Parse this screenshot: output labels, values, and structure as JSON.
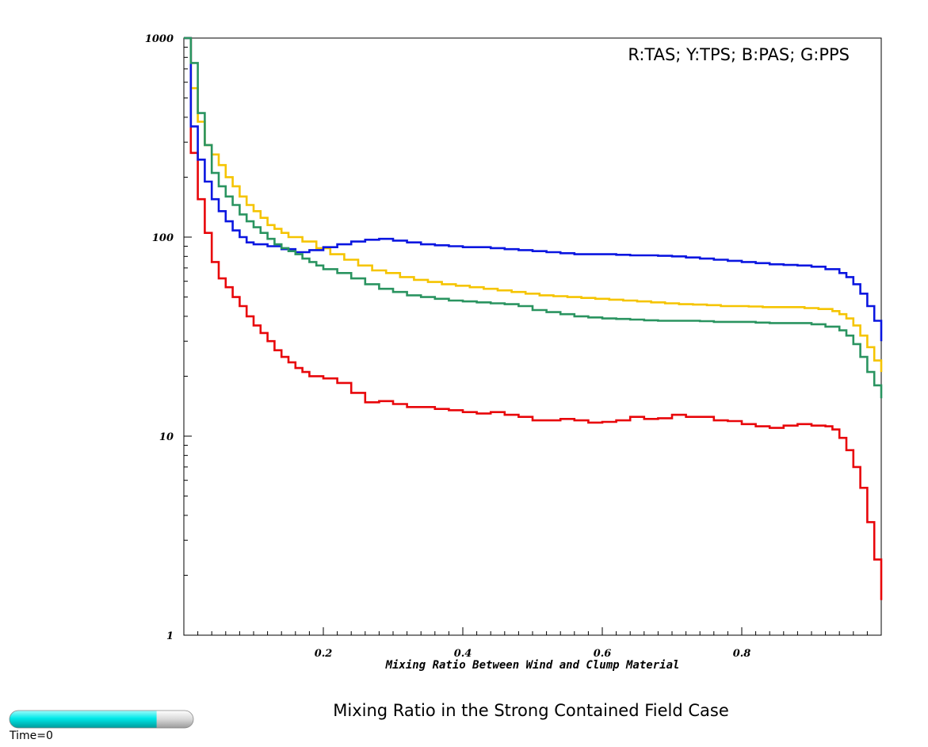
{
  "chart_data": {
    "type": "line",
    "step": true,
    "title": "Mixing Ratio in the Strong Contained Field Case",
    "xlabel": "Mixing Ratio Between Wind and Clump Material",
    "ylabel": "",
    "xlim": [
      0,
      1
    ],
    "ylim": [
      1,
      1000
    ],
    "y_scale": "log",
    "x_ticks": [
      0.2,
      0.4,
      0.6,
      0.8
    ],
    "x_tick_labels": [
      "0.2",
      "0.4",
      "0.6",
      "0.8"
    ],
    "y_ticks": [
      1,
      10,
      100,
      1000
    ],
    "y_tick_labels": [
      "1",
      "10",
      "100",
      "1000"
    ],
    "legend_text": "R:TAS; Y:TPS; B:PAS; G:PPS",
    "legend_position": "top-right",
    "grid": false,
    "series": [
      {
        "name": "TAS",
        "color": "#e8060a",
        "points": [
          [
            0.0,
            1000
          ],
          [
            0.01,
            265
          ],
          [
            0.02,
            155
          ],
          [
            0.03,
            105
          ],
          [
            0.04,
            75
          ],
          [
            0.05,
            62
          ],
          [
            0.06,
            56
          ],
          [
            0.07,
            50
          ],
          [
            0.08,
            45
          ],
          [
            0.09,
            40
          ],
          [
            0.1,
            36
          ],
          [
            0.11,
            33
          ],
          [
            0.12,
            30
          ],
          [
            0.13,
            27
          ],
          [
            0.14,
            25
          ],
          [
            0.15,
            23.5
          ],
          [
            0.16,
            22
          ],
          [
            0.17,
            21
          ],
          [
            0.18,
            20
          ],
          [
            0.2,
            19.5
          ],
          [
            0.22,
            18.5
          ],
          [
            0.24,
            16.5
          ],
          [
            0.26,
            14.8
          ],
          [
            0.28,
            15
          ],
          [
            0.3,
            14.5
          ],
          [
            0.32,
            14
          ],
          [
            0.34,
            14
          ],
          [
            0.36,
            13.7
          ],
          [
            0.38,
            13.5
          ],
          [
            0.4,
            13.2
          ],
          [
            0.42,
            13
          ],
          [
            0.44,
            13.2
          ],
          [
            0.46,
            12.8
          ],
          [
            0.48,
            12.5
          ],
          [
            0.5,
            12
          ],
          [
            0.52,
            12
          ],
          [
            0.54,
            12.2
          ],
          [
            0.56,
            12
          ],
          [
            0.58,
            11.7
          ],
          [
            0.6,
            11.8
          ],
          [
            0.62,
            12
          ],
          [
            0.64,
            12.5
          ],
          [
            0.66,
            12.2
          ],
          [
            0.68,
            12.3
          ],
          [
            0.7,
            12.8
          ],
          [
            0.72,
            12.5
          ],
          [
            0.74,
            12.5
          ],
          [
            0.76,
            12
          ],
          [
            0.78,
            11.9
          ],
          [
            0.8,
            11.5
          ],
          [
            0.82,
            11.2
          ],
          [
            0.84,
            11
          ],
          [
            0.86,
            11.3
          ],
          [
            0.88,
            11.5
          ],
          [
            0.9,
            11.3
          ],
          [
            0.92,
            11.2
          ],
          [
            0.93,
            10.8
          ],
          [
            0.94,
            9.8
          ],
          [
            0.95,
            8.5
          ],
          [
            0.96,
            7
          ],
          [
            0.97,
            5.5
          ],
          [
            0.98,
            3.7
          ],
          [
            0.99,
            2.4
          ],
          [
            1.0,
            1.5
          ]
        ]
      },
      {
        "name": "TPS",
        "color": "#f5c400",
        "points": [
          [
            0.0,
            1000
          ],
          [
            0.01,
            560
          ],
          [
            0.02,
            380
          ],
          [
            0.03,
            290
          ],
          [
            0.04,
            260
          ],
          [
            0.05,
            230
          ],
          [
            0.06,
            200
          ],
          [
            0.07,
            180
          ],
          [
            0.08,
            160
          ],
          [
            0.09,
            145
          ],
          [
            0.1,
            135
          ],
          [
            0.11,
            125
          ],
          [
            0.12,
            115
          ],
          [
            0.13,
            110
          ],
          [
            0.14,
            105
          ],
          [
            0.15,
            100
          ],
          [
            0.17,
            95
          ],
          [
            0.19,
            88
          ],
          [
            0.21,
            82
          ],
          [
            0.23,
            77
          ],
          [
            0.25,
            72
          ],
          [
            0.27,
            68
          ],
          [
            0.29,
            66
          ],
          [
            0.31,
            63
          ],
          [
            0.33,
            61
          ],
          [
            0.35,
            59.5
          ],
          [
            0.37,
            58
          ],
          [
            0.39,
            57
          ],
          [
            0.41,
            56
          ],
          [
            0.43,
            55
          ],
          [
            0.45,
            54
          ],
          [
            0.47,
            53
          ],
          [
            0.49,
            52
          ],
          [
            0.51,
            51
          ],
          [
            0.53,
            50.5
          ],
          [
            0.55,
            50
          ],
          [
            0.57,
            49.5
          ],
          [
            0.59,
            49
          ],
          [
            0.61,
            48.5
          ],
          [
            0.63,
            48
          ],
          [
            0.65,
            47.5
          ],
          [
            0.67,
            47
          ],
          [
            0.69,
            46.5
          ],
          [
            0.71,
            46
          ],
          [
            0.73,
            45.8
          ],
          [
            0.75,
            45.5
          ],
          [
            0.77,
            45
          ],
          [
            0.79,
            45
          ],
          [
            0.81,
            44.8
          ],
          [
            0.83,
            44.5
          ],
          [
            0.85,
            44.5
          ],
          [
            0.87,
            44.5
          ],
          [
            0.89,
            44
          ],
          [
            0.91,
            43.5
          ],
          [
            0.93,
            42.5
          ],
          [
            0.94,
            41
          ],
          [
            0.95,
            39
          ],
          [
            0.96,
            36
          ],
          [
            0.97,
            32
          ],
          [
            0.98,
            28
          ],
          [
            0.99,
            24
          ],
          [
            1.0,
            21
          ]
        ]
      },
      {
        "name": "PAS",
        "color": "#0a16e0",
        "points": [
          [
            0.0,
            1000
          ],
          [
            0.01,
            360
          ],
          [
            0.02,
            245
          ],
          [
            0.03,
            190
          ],
          [
            0.04,
            155
          ],
          [
            0.05,
            135
          ],
          [
            0.06,
            120
          ],
          [
            0.07,
            108
          ],
          [
            0.08,
            100
          ],
          [
            0.09,
            94
          ],
          [
            0.1,
            92
          ],
          [
            0.12,
            90
          ],
          [
            0.14,
            87
          ],
          [
            0.16,
            84
          ],
          [
            0.18,
            86
          ],
          [
            0.2,
            89
          ],
          [
            0.22,
            92
          ],
          [
            0.24,
            95
          ],
          [
            0.26,
            97
          ],
          [
            0.28,
            98
          ],
          [
            0.3,
            96
          ],
          [
            0.32,
            94
          ],
          [
            0.34,
            92
          ],
          [
            0.36,
            91
          ],
          [
            0.38,
            90
          ],
          [
            0.4,
            89
          ],
          [
            0.42,
            89
          ],
          [
            0.44,
            88
          ],
          [
            0.46,
            87
          ],
          [
            0.48,
            86
          ],
          [
            0.5,
            85
          ],
          [
            0.52,
            84
          ],
          [
            0.54,
            83
          ],
          [
            0.56,
            82
          ],
          [
            0.58,
            82
          ],
          [
            0.6,
            82
          ],
          [
            0.62,
            81.5
          ],
          [
            0.64,
            81
          ],
          [
            0.66,
            81
          ],
          [
            0.68,
            80.5
          ],
          [
            0.7,
            80
          ],
          [
            0.72,
            79
          ],
          [
            0.74,
            78
          ],
          [
            0.76,
            77
          ],
          [
            0.78,
            76
          ],
          [
            0.8,
            75
          ],
          [
            0.82,
            74
          ],
          [
            0.84,
            73
          ],
          [
            0.86,
            72.5
          ],
          [
            0.88,
            72
          ],
          [
            0.9,
            71
          ],
          [
            0.92,
            69
          ],
          [
            0.94,
            66
          ],
          [
            0.95,
            63
          ],
          [
            0.96,
            58
          ],
          [
            0.97,
            52
          ],
          [
            0.98,
            45
          ],
          [
            0.99,
            38
          ],
          [
            1.0,
            30
          ]
        ]
      },
      {
        "name": "PPS",
        "color": "#2a9460",
        "points": [
          [
            0.0,
            1000
          ],
          [
            0.01,
            750
          ],
          [
            0.02,
            420
          ],
          [
            0.03,
            290
          ],
          [
            0.04,
            210
          ],
          [
            0.05,
            180
          ],
          [
            0.06,
            160
          ],
          [
            0.07,
            145
          ],
          [
            0.08,
            130
          ],
          [
            0.09,
            120
          ],
          [
            0.1,
            112
          ],
          [
            0.11,
            105
          ],
          [
            0.12,
            98
          ],
          [
            0.13,
            92
          ],
          [
            0.14,
            88
          ],
          [
            0.15,
            85
          ],
          [
            0.16,
            82
          ],
          [
            0.17,
            78
          ],
          [
            0.18,
            75
          ],
          [
            0.19,
            72
          ],
          [
            0.2,
            69
          ],
          [
            0.22,
            66
          ],
          [
            0.24,
            62
          ],
          [
            0.26,
            58
          ],
          [
            0.28,
            55
          ],
          [
            0.3,
            53
          ],
          [
            0.32,
            51
          ],
          [
            0.34,
            50
          ],
          [
            0.36,
            49
          ],
          [
            0.38,
            48
          ],
          [
            0.4,
            47.5
          ],
          [
            0.42,
            47
          ],
          [
            0.44,
            46.5
          ],
          [
            0.46,
            46
          ],
          [
            0.48,
            45
          ],
          [
            0.5,
            43
          ],
          [
            0.52,
            42
          ],
          [
            0.54,
            41
          ],
          [
            0.56,
            40
          ],
          [
            0.58,
            39.5
          ],
          [
            0.6,
            39
          ],
          [
            0.62,
            38.8
          ],
          [
            0.64,
            38.5
          ],
          [
            0.66,
            38.2
          ],
          [
            0.68,
            38
          ],
          [
            0.7,
            38
          ],
          [
            0.72,
            38
          ],
          [
            0.74,
            37.8
          ],
          [
            0.76,
            37.5
          ],
          [
            0.78,
            37.5
          ],
          [
            0.8,
            37.5
          ],
          [
            0.82,
            37.2
          ],
          [
            0.84,
            37
          ],
          [
            0.86,
            37
          ],
          [
            0.88,
            37
          ],
          [
            0.9,
            36.5
          ],
          [
            0.92,
            35.5
          ],
          [
            0.94,
            34
          ],
          [
            0.95,
            32
          ],
          [
            0.96,
            29
          ],
          [
            0.97,
            25
          ],
          [
            0.98,
            21
          ],
          [
            0.99,
            18
          ],
          [
            1.0,
            15.5
          ]
        ]
      }
    ]
  },
  "time_slider": {
    "label": "Time=0",
    "progress": 0.8,
    "fill_color": "#00e5e5",
    "track_color": "#e6e6e6"
  }
}
